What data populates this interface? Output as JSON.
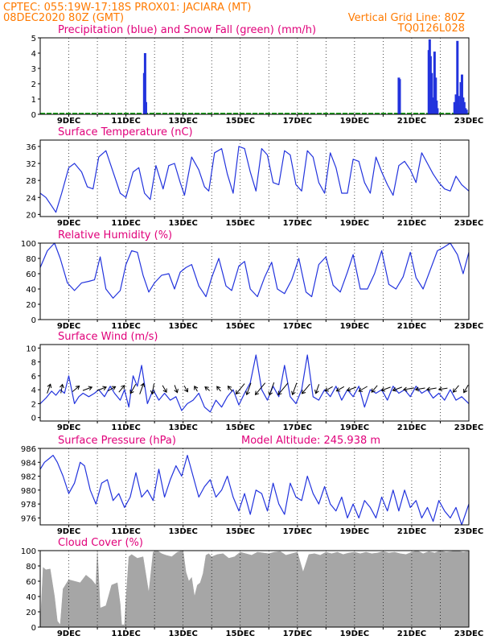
{
  "header": {
    "line1_left": "CPTEC:   055:19W-17:18S   PROX01: JACIARA (MT)",
    "line2_left": "08DEC2020 80Z (GMT)",
    "line2_right": "Vertical Grid Line: 80Z",
    "line3_right": "TQ0126L028"
  },
  "colors": {
    "header": "#ff7a00",
    "title": "#e0007a",
    "precip": "#2233dd",
    "snow": "#22aa22",
    "line": "#2233dd",
    "wind_arrow": "#000000",
    "cloud": "#a6a6a6"
  },
  "chart_data": [
    {
      "type": "bar",
      "title": "Precipitation (blue) and Snow Fall (green) (mm/h)",
      "ylim": [
        0,
        5
      ],
      "yticks": [
        0,
        1,
        2,
        3,
        4,
        5
      ],
      "xlim": [
        8.0,
        23.0
      ],
      "xtick_labels": [
        "9DEC",
        "11DEC",
        "13DEC",
        "15DEC",
        "17DEC",
        "19DEC",
        "21DEC",
        "23DEC"
      ],
      "series": [
        {
          "name": "Precipitation",
          "x": [
            11.64,
            11.67,
            11.7,
            20.55,
            20.58,
            21.6,
            21.63,
            21.66,
            21.7,
            21.74,
            21.8,
            21.84,
            21.87,
            21.9,
            22.5,
            22.55,
            22.6,
            22.64,
            22.68,
            22.72,
            22.76,
            22.8,
            22.84,
            22.88,
            22.92
          ],
          "values": [
            2.7,
            4.0,
            0.8,
            2.4,
            2.3,
            4.2,
            4.9,
            3.8,
            2.7,
            1.1,
            4.1,
            2.4,
            0.9,
            0.4,
            0.8,
            1.3,
            4.8,
            1.2,
            0.6,
            2.1,
            2.6,
            1.1,
            0.8,
            0.4,
            0.3
          ]
        }
      ]
    },
    {
      "type": "line",
      "title": "Surface Temperature (nC)",
      "ylim": [
        19.5,
        37.5
      ],
      "yticks": [
        20,
        24,
        28,
        32,
        36
      ],
      "xlim": [
        8.0,
        23.0
      ],
      "xtick_labels": [
        "9DEC",
        "11DEC",
        "13DEC",
        "15DEC",
        "17DEC",
        "19DEC",
        "21DEC",
        "23DEC"
      ],
      "x": [
        8.0,
        8.2,
        8.4,
        8.55,
        8.75,
        9.0,
        9.2,
        9.45,
        9.65,
        9.85,
        10.05,
        10.3,
        10.55,
        10.8,
        11.0,
        11.25,
        11.45,
        11.65,
        11.85,
        12.05,
        12.3,
        12.5,
        12.7,
        12.9,
        13.05,
        13.3,
        13.55,
        13.75,
        13.9,
        14.1,
        14.35,
        14.55,
        14.75,
        14.95,
        15.15,
        15.35,
        15.55,
        15.75,
        15.95,
        16.15,
        16.35,
        16.55,
        16.75,
        16.95,
        17.15,
        17.35,
        17.55,
        17.75,
        17.95,
        18.15,
        18.35,
        18.55,
        18.75,
        18.95,
        19.15,
        19.35,
        19.55,
        19.75,
        19.95,
        20.15,
        20.35,
        20.55,
        20.75,
        20.95,
        21.15,
        21.35,
        21.55,
        21.75,
        21.95,
        22.15,
        22.35,
        22.55,
        22.75,
        23.0
      ],
      "values": [
        25.0,
        24.0,
        22.0,
        20.5,
        25.0,
        31.0,
        32.0,
        30.0,
        26.5,
        26.0,
        33.5,
        35.0,
        30.0,
        25.0,
        24.0,
        30.0,
        31.0,
        25.0,
        23.5,
        31.5,
        26.0,
        31.5,
        32.0,
        27.5,
        24.5,
        33.5,
        30.5,
        26.5,
        25.5,
        34.5,
        35.5,
        29.5,
        25.0,
        36.0,
        35.5,
        30.0,
        25.5,
        35.5,
        34.0,
        27.5,
        27.0,
        35.0,
        34.0,
        27.0,
        25.5,
        35.0,
        33.5,
        27.5,
        25.0,
        34.5,
        31.0,
        25.0,
        25.0,
        33.0,
        32.5,
        27.5,
        25.0,
        33.5,
        30.0,
        27.0,
        24.5,
        31.5,
        32.5,
        30.5,
        27.5,
        34.5,
        32.0,
        29.5,
        27.5,
        26.0,
        25.5,
        29.0,
        27.0,
        25.5
      ]
    },
    {
      "type": "line",
      "title": "Relative Humidity (%)",
      "ylim": [
        0,
        100
      ],
      "yticks": [
        0,
        20,
        40,
        60,
        80,
        100
      ],
      "xlim": [
        8.0,
        23.0
      ],
      "xtick_labels": [
        "9DEC",
        "11DEC",
        "13DEC",
        "15DEC",
        "17DEC",
        "19DEC",
        "21DEC",
        "23DEC"
      ],
      "x": [
        8.0,
        8.25,
        8.5,
        8.7,
        8.95,
        9.2,
        9.45,
        9.7,
        9.9,
        10.1,
        10.3,
        10.55,
        10.8,
        11.0,
        11.2,
        11.4,
        11.6,
        11.8,
        12.0,
        12.25,
        12.5,
        12.7,
        12.9,
        13.1,
        13.3,
        13.55,
        13.8,
        14.0,
        14.25,
        14.5,
        14.7,
        14.95,
        15.15,
        15.35,
        15.6,
        15.85,
        16.1,
        16.3,
        16.55,
        16.8,
        17.05,
        17.3,
        17.5,
        17.75,
        18.0,
        18.25,
        18.5,
        18.75,
        18.95,
        19.2,
        19.45,
        19.7,
        19.95,
        20.2,
        20.45,
        20.7,
        20.95,
        21.15,
        21.4,
        21.65,
        21.9,
        22.1,
        22.35,
        22.6,
        22.8,
        23.0
      ],
      "values": [
        68,
        90,
        100,
        80,
        48,
        38,
        48,
        50,
        52,
        82,
        40,
        28,
        38,
        72,
        90,
        88,
        58,
        36,
        48,
        58,
        60,
        40,
        62,
        68,
        72,
        44,
        30,
        55,
        80,
        44,
        38,
        70,
        76,
        40,
        30,
        55,
        75,
        40,
        34,
        52,
        80,
        36,
        30,
        72,
        82,
        45,
        36,
        62,
        85,
        40,
        40,
        60,
        90,
        46,
        40,
        56,
        88,
        55,
        40,
        65,
        90,
        94,
        100,
        85,
        60,
        88
      ]
    },
    {
      "type": "line",
      "title": "Surface Wind (m/s)",
      "ylim": [
        -0.5,
        10.5
      ],
      "yticks": [
        0,
        2,
        4,
        6,
        8,
        10
      ],
      "xlim": [
        8.0,
        23.0
      ],
      "xtick_labels": [
        "9DEC",
        "11DEC",
        "13DEC",
        "15DEC",
        "17DEC",
        "19DEC",
        "21DEC",
        "23DEC"
      ],
      "x": [
        8.0,
        8.2,
        8.4,
        8.55,
        8.7,
        8.85,
        9.0,
        9.2,
        9.35,
        9.5,
        9.7,
        9.9,
        10.05,
        10.25,
        10.45,
        10.6,
        10.8,
        10.95,
        11.1,
        11.25,
        11.4,
        11.55,
        11.75,
        11.95,
        12.15,
        12.35,
        12.55,
        12.75,
        12.95,
        13.15,
        13.35,
        13.55,
        13.75,
        13.95,
        14.15,
        14.35,
        14.55,
        14.75,
        14.95,
        15.15,
        15.35,
        15.55,
        15.75,
        15.95,
        16.15,
        16.35,
        16.55,
        16.75,
        16.95,
        17.15,
        17.35,
        17.55,
        17.75,
        17.95,
        18.15,
        18.35,
        18.55,
        18.75,
        18.95,
        19.15,
        19.35,
        19.55,
        19.75,
        19.95,
        20.15,
        20.35,
        20.55,
        20.75,
        20.95,
        21.15,
        21.35,
        21.55,
        21.75,
        21.95,
        22.15,
        22.35,
        22.55,
        22.75,
        23.0
      ],
      "values": [
        2.0,
        2.8,
        3.8,
        3.2,
        4.0,
        3.5,
        6.0,
        2.0,
        3.0,
        3.5,
        3.0,
        3.5,
        4.0,
        3.0,
        4.5,
        3.5,
        2.5,
        4.0,
        1.5,
        6.0,
        4.5,
        7.5,
        2.0,
        4.0,
        2.5,
        3.5,
        2.5,
        3.0,
        1.0,
        2.0,
        2.5,
        3.5,
        1.5,
        0.8,
        2.5,
        1.5,
        3.0,
        4.0,
        1.8,
        3.5,
        5.0,
        9.0,
        4.0,
        2.5,
        4.5,
        3.0,
        7.5,
        3.0,
        2.0,
        4.0,
        9.0,
        3.0,
        2.5,
        4.0,
        3.0,
        4.5,
        2.5,
        4.0,
        3.0,
        4.5,
        1.5,
        4.0,
        3.5,
        4.0,
        2.5,
        4.5,
        3.5,
        4.0,
        3.0,
        4.5,
        3.5,
        4.0,
        2.8,
        3.5,
        2.5,
        4.0,
        2.5,
        3.0,
        2.0
      ]
    },
    {
      "type": "line",
      "title": "Surface Pressure (hPa)",
      "annotation": "Model Altitude: 245.938 m",
      "ylim": [
        975.0,
        986.0
      ],
      "yticks": [
        976,
        978,
        980,
        982,
        984,
        986
      ],
      "xlim": [
        8.0,
        23.0
      ],
      "xtick_labels": [
        "9DEC",
        "11DEC",
        "13DEC",
        "15DEC",
        "17DEC",
        "19DEC",
        "21DEC",
        "23DEC"
      ],
      "x": [
        8.0,
        8.15,
        8.3,
        8.45,
        8.6,
        8.8,
        9.0,
        9.2,
        9.4,
        9.55,
        9.75,
        9.95,
        10.15,
        10.35,
        10.55,
        10.75,
        10.95,
        11.15,
        11.35,
        11.55,
        11.75,
        11.95,
        12.15,
        12.35,
        12.55,
        12.75,
        12.95,
        13.15,
        13.35,
        13.55,
        13.75,
        13.95,
        14.15,
        14.35,
        14.55,
        14.75,
        14.95,
        15.15,
        15.35,
        15.55,
        15.75,
        15.95,
        16.15,
        16.35,
        16.55,
        16.75,
        16.95,
        17.15,
        17.35,
        17.55,
        17.75,
        17.95,
        18.15,
        18.35,
        18.55,
        18.75,
        18.95,
        19.15,
        19.35,
        19.55,
        19.75,
        19.95,
        20.15,
        20.35,
        20.55,
        20.75,
        20.95,
        21.15,
        21.35,
        21.55,
        21.75,
        21.95,
        22.15,
        22.35,
        22.55,
        22.75,
        23.0
      ],
      "values": [
        983.0,
        984.0,
        984.5,
        985.0,
        984.0,
        982.0,
        979.5,
        981.0,
        984.0,
        983.5,
        980.0,
        978.0,
        981.0,
        981.5,
        978.5,
        979.5,
        977.5,
        979.0,
        982.5,
        979.0,
        980.0,
        978.5,
        983.0,
        979.0,
        981.5,
        983.5,
        982.0,
        985.0,
        982.0,
        979.0,
        980.5,
        981.5,
        979.0,
        980.0,
        982.0,
        979.0,
        977.0,
        979.5,
        976.5,
        980.0,
        979.5,
        977.0,
        981.0,
        978.0,
        976.5,
        981.0,
        979.0,
        978.5,
        982.0,
        979.5,
        978.0,
        980.5,
        978.0,
        977.0,
        979.0,
        976.0,
        978.0,
        976.0,
        978.5,
        977.5,
        976.0,
        979.0,
        977.0,
        980.0,
        977.0,
        980.0,
        977.5,
        978.5,
        976.0,
        977.5,
        975.5,
        978.5,
        977.0,
        976.0,
        977.5,
        975.0,
        978.0
      ]
    },
    {
      "type": "area",
      "title": "Cloud Cover (%)",
      "ylim": [
        0,
        100
      ],
      "yticks": [
        0,
        20,
        40,
        60,
        80,
        100
      ],
      "xlim": [
        8.0,
        23.0
      ],
      "xtick_labels": [
        "9DEC",
        "11DEC",
        "13DEC",
        "15DEC",
        "17DEC",
        "19DEC",
        "21DEC",
        "23DEC"
      ],
      "x": [
        8.1,
        8.2,
        8.35,
        8.5,
        8.6,
        8.7,
        8.8,
        9.0,
        9.2,
        9.4,
        9.6,
        9.8,
        9.95,
        10.0,
        10.1,
        10.3,
        10.5,
        10.7,
        10.8,
        10.85,
        10.95,
        11.0,
        11.1,
        11.2,
        11.4,
        11.6,
        11.7,
        11.8,
        11.95,
        12.1,
        12.25,
        12.4,
        12.6,
        12.8,
        13.0,
        13.1,
        13.2,
        13.3,
        13.4,
        13.5,
        13.6,
        13.7,
        13.8,
        13.9,
        14.0,
        14.2,
        14.4,
        14.6,
        14.8,
        15.0,
        15.2,
        15.4,
        15.6,
        15.8,
        16.0,
        16.2,
        16.4,
        16.6,
        16.8,
        17.0,
        17.2,
        17.4,
        17.6,
        17.8,
        18.0,
        18.2,
        18.4,
        18.6,
        18.8,
        19.0,
        19.2,
        19.4,
        19.6,
        19.8,
        20.0,
        20.2,
        20.4,
        20.6,
        20.8,
        21.0,
        21.2,
        21.4,
        21.6,
        21.8,
        22.0,
        22.2,
        22.4,
        22.6,
        22.8,
        22.95
      ],
      "values": [
        78,
        75,
        76,
        40,
        8,
        3,
        50,
        62,
        60,
        58,
        68,
        62,
        55,
        100,
        25,
        28,
        55,
        58,
        30,
        3,
        3,
        35,
        92,
        95,
        90,
        92,
        68,
        45,
        98,
        100,
        96,
        94,
        92,
        98,
        100,
        72,
        60,
        65,
        40,
        55,
        58,
        70,
        94,
        96,
        92,
        95,
        96,
        90,
        92,
        98,
        96,
        94,
        98,
        97,
        96,
        98,
        99,
        94,
        96,
        98,
        72,
        95,
        96,
        94,
        98,
        96,
        98,
        95,
        97,
        98,
        96,
        98,
        96,
        97,
        99,
        97,
        98,
        96,
        95,
        98,
        100,
        96,
        99,
        97,
        100,
        98,
        99,
        100,
        98,
        99
      ]
    }
  ],
  "wind_barbs": {
    "x": [
      8.3,
      8.75,
      9.25,
      9.65,
      10.15,
      10.5,
      10.85,
      11.25,
      11.55,
      11.95,
      12.35,
      12.75,
      13.1,
      13.45,
      13.85,
      14.25,
      14.65,
      15.0,
      15.3,
      15.7,
      16.1,
      16.5,
      16.9,
      17.3,
      17.7,
      18.1,
      18.5,
      18.9,
      19.3,
      19.7,
      20.1,
      20.5,
      20.9,
      21.3,
      21.7,
      22.1,
      22.55,
      22.9
    ],
    "direction_deg": [
      200,
      190,
      230,
      250,
      250,
      240,
      220,
      30,
      200,
      10,
      330,
      340,
      330,
      150,
      130,
      140,
      140,
      40,
      20,
      40,
      20,
      40,
      20,
      40,
      20,
      60,
      60,
      70,
      60,
      40,
      70,
      70,
      80,
      80,
      80,
      80,
      40,
      30
    ],
    "speed_ms": [
      3.5,
      3.0,
      3.0,
      3.5,
      3.5,
      3.0,
      3.0,
      4.0,
      4.5,
      4.0,
      2.5,
      2.5,
      2.0,
      1.5,
      1.5,
      1.5,
      2.0,
      5.5,
      5.0,
      6.5,
      5.5,
      6.5,
      5.0,
      5.0,
      3.5,
      3.0,
      3.0,
      3.5,
      3.5,
      3.0,
      3.5,
      3.5,
      4.0,
      3.5,
      3.5,
      3.0,
      3.0,
      3.0
    ]
  }
}
